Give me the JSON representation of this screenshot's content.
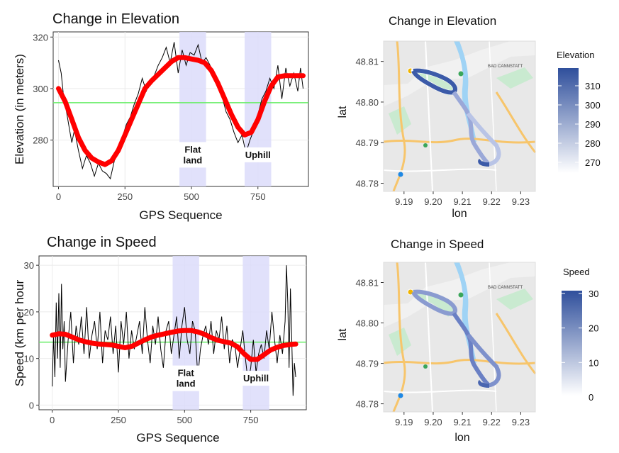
{
  "chart_data": [
    {
      "type": "line",
      "title": "Change in Elevation",
      "xlabel": "GPS Sequence",
      "ylabel": "Elevation (in meters)",
      "xlim": [
        -20,
        940
      ],
      "ylim": [
        262,
        322
      ],
      "x_ticks": [
        0,
        250,
        500,
        750
      ],
      "x_tick_labels": [
        "0",
        "250",
        "500",
        "750"
      ],
      "y_ticks": [
        280,
        300,
        320
      ],
      "y_tick_labels": [
        "280",
        "300",
        "320"
      ],
      "grid": true,
      "reference_line": 294.5,
      "raw_series": {
        "x": [
          0,
          10,
          20,
          30,
          40,
          50,
          60,
          75,
          90,
          105,
          120,
          135,
          150,
          165,
          180,
          195,
          210,
          225,
          240,
          255,
          270,
          285,
          300,
          315,
          330,
          345,
          360,
          375,
          390,
          405,
          420,
          435,
          450,
          465,
          480,
          495,
          510,
          525,
          540,
          555,
          570,
          585,
          600,
          615,
          630,
          645,
          660,
          675,
          690,
          705,
          720,
          735,
          750,
          765,
          780,
          795,
          810,
          825,
          840,
          855,
          870,
          885,
          900,
          910,
          920
        ],
        "y": [
          311,
          306,
          296,
          291,
          285,
          279,
          284,
          276,
          269,
          274,
          271,
          266,
          271,
          268,
          267,
          265,
          272,
          275,
          281,
          286,
          289,
          294,
          298,
          304,
          299,
          303,
          305,
          309,
          312,
          316,
          310,
          318,
          306,
          315,
          309,
          314,
          313,
          317,
          310,
          312,
          309,
          306,
          301,
          297,
          291,
          288,
          283,
          279,
          282,
          275,
          280,
          284,
          290,
          296,
          299,
          304,
          300,
          309,
          296,
          308,
          301,
          306,
          299,
          308,
          300
        ]
      },
      "smooth_series": {
        "x": [
          0,
          25,
          50,
          75,
          100,
          125,
          150,
          175,
          200,
          225,
          250,
          275,
          300,
          325,
          350,
          375,
          400,
          425,
          450,
          475,
          500,
          525,
          550,
          575,
          600,
          625,
          650,
          675,
          700,
          725,
          750,
          775,
          800,
          825,
          850,
          875,
          900,
          920
        ],
        "y": [
          300,
          295,
          288,
          281,
          276,
          273,
          271.5,
          270.5,
          272,
          276,
          282,
          288,
          294,
          300,
          303,
          305.5,
          308,
          310.5,
          312,
          312,
          311.5,
          311,
          310,
          307,
          302,
          296,
          290,
          285,
          282,
          283,
          288,
          295,
          301,
          304.5,
          305,
          305,
          305,
          305
        ]
      },
      "bands": [
        {
          "x0": 455,
          "x1": 555,
          "label_lines": [
            "Flat",
            "land"
          ]
        },
        {
          "x0": 700,
          "x1": 800,
          "label_lines": [
            "Uphill"
          ]
        }
      ]
    },
    {
      "type": "line",
      "title": "Change in Speed",
      "xlabel": "GPS Sequence",
      "ylabel": "Speed (km per hour",
      "xlim": [
        -50,
        960
      ],
      "ylim": [
        -1,
        32
      ],
      "x_ticks": [
        0,
        250,
        500,
        750
      ],
      "x_tick_labels": [
        "0",
        "250",
        "500",
        "750"
      ],
      "y_ticks": [
        0,
        10,
        20,
        30
      ],
      "y_tick_labels": [
        "0",
        "10",
        "20",
        "30"
      ],
      "grid": true,
      "reference_line": 13.5,
      "raw_series": {
        "x": [
          0,
          5,
          10,
          15,
          20,
          25,
          30,
          35,
          40,
          45,
          50,
          60,
          70,
          80,
          90,
          100,
          110,
          120,
          130,
          140,
          150,
          160,
          170,
          180,
          190,
          200,
          210,
          220,
          230,
          240,
          250,
          260,
          270,
          280,
          290,
          300,
          310,
          320,
          330,
          340,
          350,
          360,
          370,
          380,
          390,
          400,
          410,
          420,
          430,
          440,
          450,
          460,
          470,
          480,
          490,
          500,
          510,
          520,
          530,
          540,
          550,
          560,
          570,
          580,
          590,
          600,
          610,
          620,
          630,
          640,
          650,
          660,
          670,
          680,
          690,
          700,
          710,
          720,
          730,
          740,
          750,
          760,
          770,
          780,
          790,
          800,
          810,
          820,
          830,
          840,
          850,
          860,
          870,
          880,
          885,
          890,
          895,
          900,
          905,
          910,
          915,
          920
        ],
        "y": [
          4,
          15,
          6,
          22,
          10,
          24,
          8,
          26,
          12,
          18,
          5,
          14,
          20,
          9,
          17,
          13,
          19,
          11,
          21,
          10,
          15,
          18,
          12,
          20,
          9,
          16,
          14,
          19,
          11,
          17,
          7,
          18,
          13,
          20,
          10,
          16,
          12,
          15,
          18,
          11,
          21,
          14,
          9,
          17,
          13,
          19,
          12,
          8,
          16,
          18,
          11,
          15,
          19,
          10,
          17,
          21,
          14,
          11,
          18,
          16,
          6,
          12,
          15,
          17,
          13,
          18,
          11,
          16,
          14,
          19,
          12,
          17,
          9,
          14,
          13,
          8,
          12,
          16,
          10,
          5,
          8,
          14,
          7,
          11,
          13,
          10,
          16,
          12,
          20,
          14,
          9,
          15,
          11,
          18,
          30,
          22,
          8,
          25,
          14,
          2,
          9,
          6
        ]
      },
      "smooth_series": {
        "x": [
          0,
          25,
          50,
          75,
          100,
          125,
          150,
          175,
          200,
          225,
          250,
          275,
          300,
          325,
          350,
          375,
          400,
          425,
          450,
          475,
          500,
          525,
          550,
          575,
          600,
          625,
          650,
          675,
          700,
          725,
          750,
          775,
          800,
          825,
          850,
          875,
          900,
          920
        ],
        "y": [
          15,
          15.3,
          15.2,
          14.6,
          14,
          13.6,
          13.3,
          13.1,
          13,
          12.9,
          12.6,
          12.3,
          12.6,
          13.3,
          14,
          14.6,
          15,
          15.3,
          15.6,
          15.9,
          16,
          16,
          15.7,
          15.2,
          14.5,
          13.9,
          13.6,
          13.3,
          12.5,
          11,
          9.8,
          9.8,
          10.8,
          11.8,
          12.4,
          12.8,
          13,
          13.1
        ]
      },
      "bands": [
        {
          "x0": 455,
          "x1": 555,
          "label_lines": [
            "Flat",
            "land"
          ]
        },
        {
          "x0": 720,
          "x1": 820,
          "label_lines": [
            "Uphill"
          ]
        }
      ]
    },
    {
      "type": "scatter",
      "title": "Change in Elevation",
      "xlabel": "lon",
      "ylabel": "lat",
      "xlim": [
        9.183,
        9.235
      ],
      "ylim": [
        48.778,
        48.815
      ],
      "x_ticks": [
        9.19,
        9.2,
        9.21,
        9.22,
        9.23
      ],
      "x_tick_labels": [
        "9.19",
        "9.20",
        "9.21",
        "9.22",
        "9.23"
      ],
      "y_ticks": [
        48.78,
        48.79,
        48.8,
        48.81
      ],
      "y_tick_labels": [
        "48.78",
        "48.79",
        "48.80",
        "48.81"
      ],
      "legend_title": "Elevation",
      "legend_ticks": [
        "310",
        "300",
        "290",
        "280",
        "270"
      ],
      "legend_placement": "right",
      "map_labels": [
        "BAD CANNSTATT"
      ]
    },
    {
      "type": "scatter",
      "title": "Change in Speed",
      "xlabel": "lon",
      "ylabel": "lat",
      "xlim": [
        9.183,
        9.235
      ],
      "ylim": [
        48.778,
        48.815
      ],
      "x_ticks": [
        9.19,
        9.2,
        9.21,
        9.22,
        9.23
      ],
      "x_tick_labels": [
        "9.19",
        "9.20",
        "9.21",
        "9.22",
        "9.23"
      ],
      "y_ticks": [
        48.78,
        48.79,
        48.8,
        48.81
      ],
      "y_tick_labels": [
        "48.78",
        "48.79",
        "48.80",
        "48.81"
      ],
      "legend_title": "Speed",
      "legend_ticks": [
        "30",
        "20",
        "10",
        "0"
      ],
      "legend_placement": "right",
      "map_labels": [
        "BAD CANNSTATT"
      ]
    }
  ],
  "colors": {
    "raw_line": "#000000",
    "smooth_line": "#ff0000",
    "reference_line": "#66ee66",
    "band_fill": "#dcdcfa",
    "grid": "#ebebeb",
    "legend_high": "#2f4f9c",
    "legend_low": "#ffffff",
    "map_water": "#9fd3f5",
    "map_park": "#c9ead0",
    "map_road": "#f7c56b",
    "map_base": "#e8e8e8"
  }
}
